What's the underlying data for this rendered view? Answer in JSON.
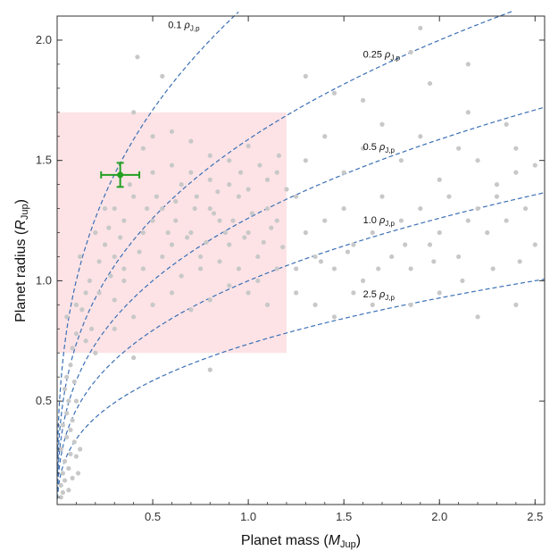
{
  "chart_data": {
    "type": "scatter",
    "title": "",
    "xlabel": {
      "main": "Planet mass (",
      "var": "M",
      "sub": "Jup",
      "close": ")"
    },
    "ylabel": {
      "main": "Planet radius (",
      "var": "R",
      "sub": "Jup",
      "close": ")"
    },
    "xlim": [
      0,
      2.55
    ],
    "ylim": [
      0.07,
      2.1
    ],
    "x_ticks": [
      {
        "value": 0.5,
        "label": "0.5"
      },
      {
        "value": 1.0,
        "label": "1.0"
      },
      {
        "value": 1.5,
        "label": "1.5"
      },
      {
        "value": 2.0,
        "label": "2.0"
      },
      {
        "value": 2.5,
        "label": "2.5"
      }
    ],
    "y_ticks": [
      {
        "value": 0.5,
        "label": "0.5"
      },
      {
        "value": 1.0,
        "label": "1.0"
      },
      {
        "value": 1.5,
        "label": "1.5"
      },
      {
        "value": 2.0,
        "label": "2.0"
      }
    ],
    "grid": false,
    "colors": {
      "points": "#c8c8c8",
      "curves": "#3a6fb5",
      "highlight_region": "#fde3e6",
      "target": "#22a022",
      "axis": "#333333"
    },
    "highlight_region": {
      "x": [
        0,
        1.2
      ],
      "y": [
        0.7,
        1.7
      ]
    },
    "density_curves": [
      {
        "density": 0.1,
        "label": "0.1",
        "unit": "ρ",
        "unit_sub": "J,p"
      },
      {
        "density": 0.25,
        "label": "0.25",
        "unit": "ρ",
        "unit_sub": "J,p"
      },
      {
        "density": 0.5,
        "label": "0.5",
        "unit": "ρ",
        "unit_sub": "J,p"
      },
      {
        "density": 1.0,
        "label": "1.0",
        "unit": "ρ",
        "unit_sub": "J,p"
      },
      {
        "density": 2.5,
        "label": "2.5",
        "unit": "ρ",
        "unit_sub": "J,p"
      }
    ],
    "target": {
      "x": 0.33,
      "y": 1.44,
      "x_err": 0.1,
      "y_err": 0.05
    },
    "points": [
      [
        0.05,
        0.85
      ],
      [
        0.1,
        0.9
      ],
      [
        0.12,
        1.1
      ],
      [
        0.15,
        0.95
      ],
      [
        0.2,
        1.2
      ],
      [
        0.25,
        1.3
      ],
      [
        0.3,
        1.1
      ],
      [
        0.35,
        1.05
      ],
      [
        0.4,
        1.35
      ],
      [
        0.45,
        1.2
      ],
      [
        0.5,
        1.25
      ],
      [
        0.55,
        1.3
      ],
      [
        0.6,
        1.15
      ],
      [
        0.65,
        1.4
      ],
      [
        0.7,
        1.2
      ],
      [
        0.75,
        1.1
      ],
      [
        0.8,
        1.3
      ],
      [
        0.85,
        1.25
      ],
      [
        0.9,
        1.15
      ],
      [
        0.95,
        1.35
      ],
      [
        1.0,
        1.2
      ],
      [
        1.05,
        1.1
      ],
      [
        1.1,
        1.3
      ],
      [
        1.15,
        1.25
      ],
      [
        0.45,
        1.55
      ],
      [
        0.5,
        1.6
      ],
      [
        0.6,
        1.62
      ],
      [
        0.7,
        1.58
      ],
      [
        0.8,
        1.52
      ],
      [
        0.9,
        1.5
      ],
      [
        1.0,
        1.56
      ],
      [
        0.4,
        1.7
      ],
      [
        0.42,
        1.93
      ],
      [
        0.55,
        1.85
      ],
      [
        0.3,
        0.92
      ],
      [
        0.35,
        1.0
      ],
      [
        0.28,
        1.02
      ],
      [
        0.22,
        0.95
      ],
      [
        0.18,
        0.8
      ],
      [
        0.15,
        0.75
      ],
      [
        0.1,
        0.78
      ],
      [
        0.08,
        0.72
      ],
      [
        0.2,
        0.7
      ],
      [
        0.3,
        0.8
      ],
      [
        0.4,
        0.85
      ],
      [
        0.5,
        0.9
      ],
      [
        0.6,
        0.95
      ],
      [
        0.7,
        0.88
      ],
      [
        0.8,
        0.92
      ],
      [
        0.9,
        0.98
      ],
      [
        1.0,
        0.95
      ],
      [
        1.1,
        0.9
      ],
      [
        0.65,
        1.02
      ],
      [
        0.75,
        1.05
      ],
      [
        0.85,
        1.08
      ],
      [
        0.95,
        1.05
      ],
      [
        1.05,
        1.0
      ],
      [
        1.15,
        1.05
      ],
      [
        0.55,
        1.1
      ],
      [
        0.45,
        1.05
      ],
      [
        0.25,
        1.15
      ],
      [
        0.35,
        1.25
      ],
      [
        0.3,
        1.3
      ],
      [
        0.38,
        1.4
      ],
      [
        0.5,
        1.45
      ],
      [
        0.6,
        1.48
      ],
      [
        0.7,
        1.45
      ],
      [
        0.8,
        1.42
      ],
      [
        0.9,
        1.4
      ],
      [
        1.0,
        1.38
      ],
      [
        1.1,
        1.42
      ],
      [
        1.15,
        1.45
      ],
      [
        1.2,
        1.38
      ],
      [
        0.52,
        1.35
      ],
      [
        0.62,
        1.33
      ],
      [
        0.72,
        1.3
      ],
      [
        0.82,
        1.28
      ],
      [
        0.92,
        1.25
      ],
      [
        1.02,
        1.28
      ],
      [
        1.12,
        1.22
      ],
      [
        0.58,
        1.2
      ],
      [
        0.68,
        1.18
      ],
      [
        0.78,
        1.16
      ],
      [
        0.88,
        1.2
      ],
      [
        0.98,
        1.18
      ],
      [
        1.08,
        1.16
      ],
      [
        1.18,
        1.14
      ],
      [
        0.62,
        1.25
      ],
      [
        0.73,
        1.35
      ],
      [
        0.84,
        1.37
      ],
      [
        0.96,
        1.45
      ],
      [
        1.06,
        1.48
      ],
      [
        1.16,
        1.52
      ],
      [
        0.47,
        1.3
      ],
      [
        0.43,
        1.12
      ],
      [
        0.33,
        1.18
      ],
      [
        0.27,
        1.22
      ],
      [
        0.22,
        1.08
      ],
      [
        0.17,
        1.0
      ],
      [
        0.13,
        0.88
      ],
      [
        1.25,
        1.35
      ],
      [
        1.3,
        1.2
      ],
      [
        1.35,
        1.1
      ],
      [
        1.4,
        1.25
      ],
      [
        1.45,
        1.05
      ],
      [
        1.5,
        1.3
      ],
      [
        1.55,
        1.15
      ],
      [
        1.6,
        1.0
      ],
      [
        1.65,
        1.2
      ],
      [
        1.7,
        1.35
      ],
      [
        1.75,
        1.1
      ],
      [
        1.8,
        1.25
      ],
      [
        1.85,
        1.05
      ],
      [
        1.9,
        1.3
      ],
      [
        1.95,
        1.15
      ],
      [
        2.0,
        1.2
      ],
      [
        2.05,
        1.35
      ],
      [
        2.1,
        1.1
      ],
      [
        2.15,
        1.25
      ],
      [
        2.2,
        1.3
      ],
      [
        2.25,
        1.2
      ],
      [
        2.3,
        1.4
      ],
      [
        2.35,
        1.25
      ],
      [
        2.4,
        1.45
      ],
      [
        2.45,
        1.3
      ],
      [
        2.5,
        1.15
      ],
      [
        1.3,
        1.5
      ],
      [
        1.4,
        1.6
      ],
      [
        1.5,
        1.45
      ],
      [
        1.6,
        1.55
      ],
      [
        1.7,
        1.65
      ],
      [
        1.8,
        1.5
      ],
      [
        1.9,
        1.6
      ],
      [
        2.0,
        1.42
      ],
      [
        2.1,
        1.55
      ],
      [
        2.2,
        1.5
      ],
      [
        2.3,
        1.35
      ],
      [
        2.4,
        1.55
      ],
      [
        2.5,
        1.48
      ],
      [
        1.25,
        0.95
      ],
      [
        1.35,
        0.9
      ],
      [
        1.45,
        0.85
      ],
      [
        1.55,
        0.95
      ],
      [
        1.65,
        0.9
      ],
      [
        1.85,
        0.9
      ],
      [
        2.0,
        0.95
      ],
      [
        2.2,
        0.85
      ],
      [
        2.4,
        0.9
      ],
      [
        1.3,
        1.85
      ],
      [
        1.45,
        1.78
      ],
      [
        1.6,
        1.75
      ],
      [
        1.85,
        1.95
      ],
      [
        1.95,
        1.82
      ],
      [
        2.15,
        1.7
      ],
      [
        2.35,
        1.65
      ],
      [
        1.25,
        1.05
      ],
      [
        1.38,
        1.08
      ],
      [
        1.52,
        1.12
      ],
      [
        1.68,
        1.05
      ],
      [
        1.82,
        1.15
      ],
      [
        1.97,
        1.08
      ],
      [
        2.12,
        1.0
      ],
      [
        2.28,
        1.05
      ],
      [
        2.42,
        1.08
      ],
      [
        0.02,
        0.15
      ],
      [
        0.03,
        0.2
      ],
      [
        0.04,
        0.25
      ],
      [
        0.02,
        0.3
      ],
      [
        0.05,
        0.35
      ],
      [
        0.03,
        0.4
      ],
      [
        0.06,
        0.22
      ],
      [
        0.07,
        0.28
      ],
      [
        0.08,
        0.18
      ],
      [
        0.05,
        0.45
      ],
      [
        0.06,
        0.5
      ],
      [
        0.04,
        0.55
      ],
      [
        0.07,
        0.38
      ],
      [
        0.09,
        0.33
      ],
      [
        0.1,
        0.27
      ],
      [
        0.08,
        0.42
      ],
      [
        0.03,
        0.12
      ],
      [
        0.02,
        0.1
      ],
      [
        0.04,
        0.17
      ],
      [
        0.06,
        0.13
      ],
      [
        0.12,
        0.3
      ],
      [
        0.11,
        0.2
      ],
      [
        0.05,
        0.6
      ],
      [
        0.07,
        0.65
      ],
      [
        0.09,
        0.58
      ],
      [
        0.1,
        0.5
      ],
      [
        0.8,
        0.63
      ],
      [
        0.4,
        0.68
      ],
      [
        1.9,
        2.05
      ],
      [
        2.15,
        1.9
      ]
    ]
  }
}
